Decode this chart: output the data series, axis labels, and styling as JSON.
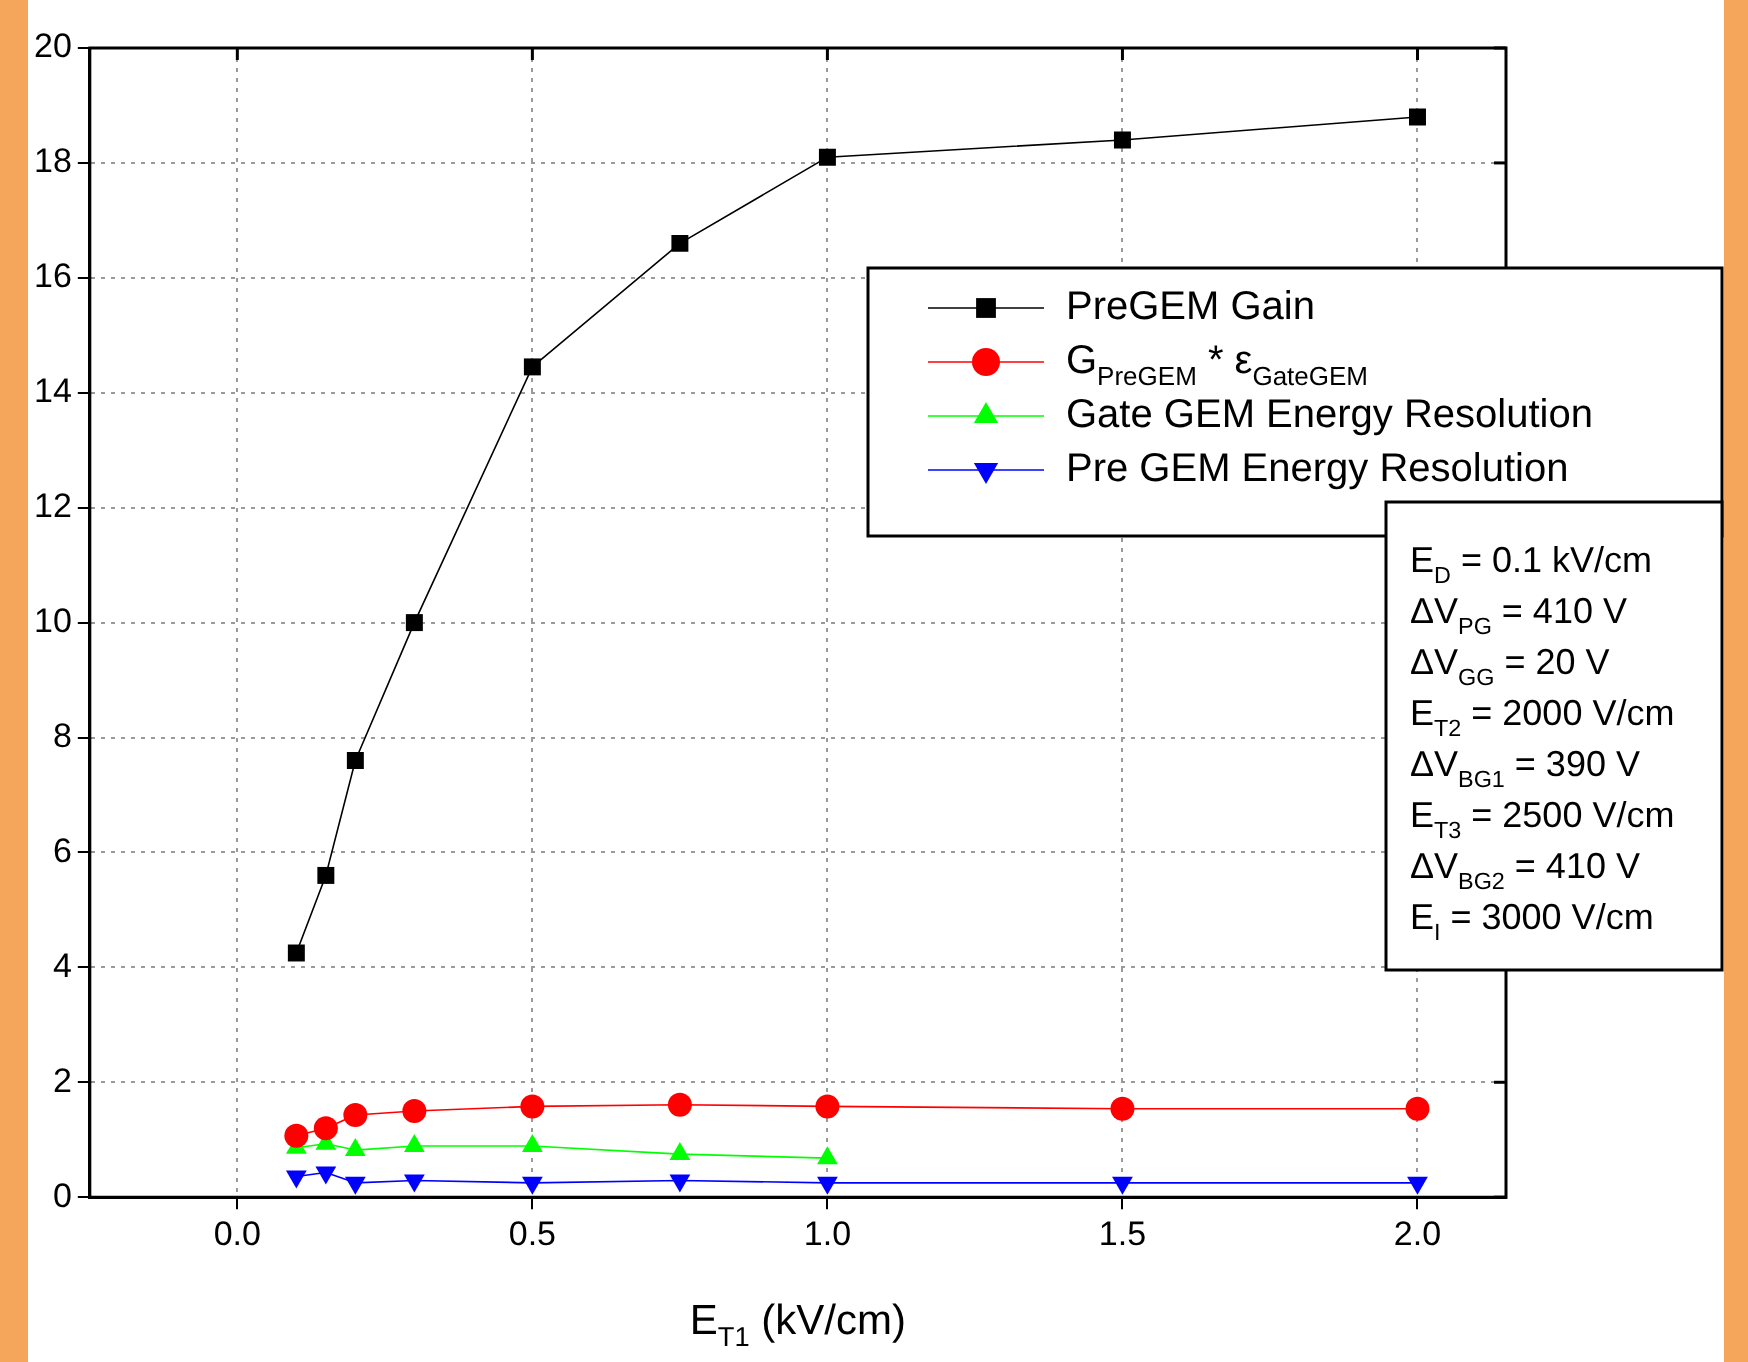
{
  "chart_data": {
    "type": "line",
    "xlabel": "E$_{T1}$ (kV/cm)",
    "series": [
      {
        "name": "PreGEM Gain",
        "color": "#000000",
        "marker": "square",
        "x": [
          0.1,
          0.15,
          0.2,
          0.3,
          0.5,
          0.75,
          1.0,
          1.5,
          2.0
        ],
        "values": [
          4.25,
          5.6,
          7.6,
          10.0,
          14.45,
          16.6,
          18.1,
          18.4,
          18.8
        ]
      },
      {
        "name": "G$_{PreGEM}$ * ε$_{GateGEM}$",
        "color": "#ff0000",
        "marker": "circle",
        "x": [
          0.1,
          0.15,
          0.2,
          0.3,
          0.5,
          0.75,
          1.0,
          1.5,
          2.0
        ],
        "values": [
          1.07,
          1.2,
          1.43,
          1.5,
          1.58,
          1.61,
          1.58,
          1.54,
          1.54
        ]
      },
      {
        "name": "Gate GEM Energy Resolution",
        "color": "#00ff00",
        "marker": "triangle",
        "x": [
          0.1,
          0.15,
          0.2,
          0.3,
          0.5,
          0.75,
          1.0
        ],
        "values": [
          0.86,
          0.93,
          0.82,
          0.89,
          0.89,
          0.75,
          0.68
        ]
      },
      {
        "name": "Pre GEM Energy Resolution",
        "color": "#0000ff",
        "marker": "triangle-down",
        "x": [
          0.1,
          0.15,
          0.2,
          0.3,
          0.5,
          0.75,
          1.0,
          1.5,
          2.0
        ],
        "values": [
          0.36,
          0.43,
          0.25,
          0.29,
          0.25,
          0.29,
          0.25,
          0.25,
          0.25
        ]
      }
    ],
    "xlim": [
      -0.25,
      2.15
    ],
    "xticks": [
      {
        "value": 0,
        "label": "0.0"
      },
      {
        "value": 0.5,
        "label": "0.5"
      },
      {
        "value": 1,
        "label": "1.0"
      },
      {
        "value": 1.5,
        "label": "1.5"
      },
      {
        "value": 2,
        "label": "2.0"
      }
    ],
    "ylim": [
      0,
      20
    ],
    "yticks": [
      0,
      2,
      4,
      6,
      8,
      10,
      12,
      14,
      16,
      18,
      20
    ],
    "grid": true,
    "legend": "top right",
    "line_style": "solid",
    "annotations": [
      "E$_{D}$ = 0.1 kV/cm",
      "ΔV$_{PG}$ = 410 V",
      "ΔV$_{GG}$ = 20 V",
      "E$_{T2}$ = 2000 V/cm",
      "ΔV$_{BG1}$ = 390 V",
      "E$_{T3}$ = 2500 V/cm",
      "ΔV$_{BG2}$ = 410 V",
      "E$_{I}$ = 3000 V/cm"
    ]
  }
}
